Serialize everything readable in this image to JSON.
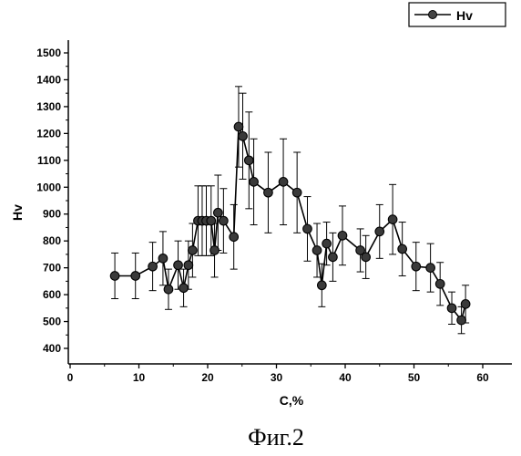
{
  "chart_data": {
    "type": "line",
    "title": "",
    "xlabel": "C,%",
    "ylabel": "Hv",
    "xlim": [
      0,
      60
    ],
    "ylim": [
      400,
      1500
    ],
    "x_ticks": [
      0,
      10,
      20,
      30,
      40,
      50,
      60
    ],
    "y_ticks": [
      400,
      500,
      600,
      700,
      800,
      900,
      1000,
      1100,
      1200,
      1300,
      1400,
      1500
    ],
    "grid": false,
    "legend_position": "top-right",
    "series": [
      {
        "name": "Hv",
        "color": "#000000",
        "marker": "circle",
        "x": [
          6.5,
          9.5,
          12.0,
          13.5,
          14.3,
          15.7,
          16.5,
          17.2,
          17.8,
          18.6,
          19.2,
          19.8,
          20.5,
          21.0,
          21.5,
          22.3,
          23.8,
          24.5,
          25.1,
          26.0,
          26.7,
          28.8,
          31.0,
          33.0,
          34.5,
          35.9,
          36.6,
          37.3,
          38.2,
          39.6,
          42.2,
          43.0,
          45.0,
          46.9,
          48.3,
          50.3,
          52.4,
          53.8,
          55.5,
          56.9,
          57.5
        ],
        "y": [
          670,
          670,
          705,
          735,
          620,
          710,
          625,
          710,
          765,
          875,
          875,
          875,
          875,
          765,
          905,
          875,
          815,
          1225,
          1190,
          1100,
          1020,
          980,
          1020,
          980,
          845,
          765,
          635,
          790,
          740,
          820,
          765,
          740,
          835,
          880,
          770,
          705,
          700,
          640,
          550,
          505,
          565
        ],
        "err": [
          85,
          85,
          90,
          100,
          75,
          90,
          70,
          90,
          100,
          130,
          130,
          130,
          130,
          100,
          140,
          120,
          120,
          150,
          160,
          180,
          160,
          150,
          160,
          150,
          120,
          100,
          80,
          80,
          90,
          110,
          80,
          80,
          100,
          130,
          100,
          90,
          90,
          80,
          60,
          50,
          70
        ]
      }
    ]
  },
  "legend": {
    "label": "Hv"
  },
  "caption": "Фиг.2"
}
